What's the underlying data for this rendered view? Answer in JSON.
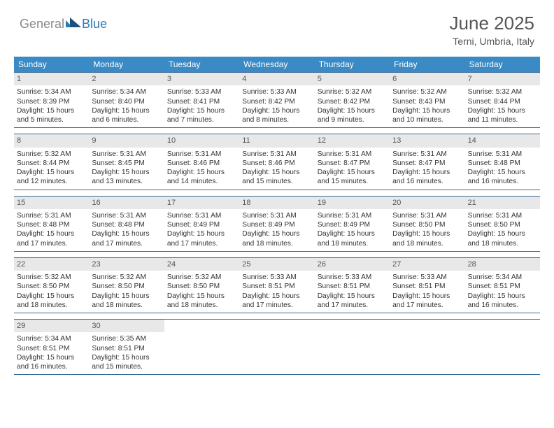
{
  "logo": {
    "text_general": "General",
    "text_blue": "Blue"
  },
  "title": {
    "month": "June 2025",
    "location": "Terni, Umbria, Italy"
  },
  "colors": {
    "header_bg": "#3a8ac5",
    "header_text": "#ffffff",
    "daynum_bg": "#e8e8e8",
    "week_border": "#3a6a98",
    "body_text": "#333333",
    "logo_gray": "#888888",
    "logo_blue": "#2a7ab8"
  },
  "weekdays": [
    "Sunday",
    "Monday",
    "Tuesday",
    "Wednesday",
    "Thursday",
    "Friday",
    "Saturday"
  ],
  "weeks": [
    [
      {
        "num": "1",
        "sunrise": "Sunrise: 5:34 AM",
        "sunset": "Sunset: 8:39 PM",
        "daylight": "Daylight: 15 hours and 5 minutes."
      },
      {
        "num": "2",
        "sunrise": "Sunrise: 5:34 AM",
        "sunset": "Sunset: 8:40 PM",
        "daylight": "Daylight: 15 hours and 6 minutes."
      },
      {
        "num": "3",
        "sunrise": "Sunrise: 5:33 AM",
        "sunset": "Sunset: 8:41 PM",
        "daylight": "Daylight: 15 hours and 7 minutes."
      },
      {
        "num": "4",
        "sunrise": "Sunrise: 5:33 AM",
        "sunset": "Sunset: 8:42 PM",
        "daylight": "Daylight: 15 hours and 8 minutes."
      },
      {
        "num": "5",
        "sunrise": "Sunrise: 5:32 AM",
        "sunset": "Sunset: 8:42 PM",
        "daylight": "Daylight: 15 hours and 9 minutes."
      },
      {
        "num": "6",
        "sunrise": "Sunrise: 5:32 AM",
        "sunset": "Sunset: 8:43 PM",
        "daylight": "Daylight: 15 hours and 10 minutes."
      },
      {
        "num": "7",
        "sunrise": "Sunrise: 5:32 AM",
        "sunset": "Sunset: 8:44 PM",
        "daylight": "Daylight: 15 hours and 11 minutes."
      }
    ],
    [
      {
        "num": "8",
        "sunrise": "Sunrise: 5:32 AM",
        "sunset": "Sunset: 8:44 PM",
        "daylight": "Daylight: 15 hours and 12 minutes."
      },
      {
        "num": "9",
        "sunrise": "Sunrise: 5:31 AM",
        "sunset": "Sunset: 8:45 PM",
        "daylight": "Daylight: 15 hours and 13 minutes."
      },
      {
        "num": "10",
        "sunrise": "Sunrise: 5:31 AM",
        "sunset": "Sunset: 8:46 PM",
        "daylight": "Daylight: 15 hours and 14 minutes."
      },
      {
        "num": "11",
        "sunrise": "Sunrise: 5:31 AM",
        "sunset": "Sunset: 8:46 PM",
        "daylight": "Daylight: 15 hours and 15 minutes."
      },
      {
        "num": "12",
        "sunrise": "Sunrise: 5:31 AM",
        "sunset": "Sunset: 8:47 PM",
        "daylight": "Daylight: 15 hours and 15 minutes."
      },
      {
        "num": "13",
        "sunrise": "Sunrise: 5:31 AM",
        "sunset": "Sunset: 8:47 PM",
        "daylight": "Daylight: 15 hours and 16 minutes."
      },
      {
        "num": "14",
        "sunrise": "Sunrise: 5:31 AM",
        "sunset": "Sunset: 8:48 PM",
        "daylight": "Daylight: 15 hours and 16 minutes."
      }
    ],
    [
      {
        "num": "15",
        "sunrise": "Sunrise: 5:31 AM",
        "sunset": "Sunset: 8:48 PM",
        "daylight": "Daylight: 15 hours and 17 minutes."
      },
      {
        "num": "16",
        "sunrise": "Sunrise: 5:31 AM",
        "sunset": "Sunset: 8:48 PM",
        "daylight": "Daylight: 15 hours and 17 minutes."
      },
      {
        "num": "17",
        "sunrise": "Sunrise: 5:31 AM",
        "sunset": "Sunset: 8:49 PM",
        "daylight": "Daylight: 15 hours and 17 minutes."
      },
      {
        "num": "18",
        "sunrise": "Sunrise: 5:31 AM",
        "sunset": "Sunset: 8:49 PM",
        "daylight": "Daylight: 15 hours and 18 minutes."
      },
      {
        "num": "19",
        "sunrise": "Sunrise: 5:31 AM",
        "sunset": "Sunset: 8:49 PM",
        "daylight": "Daylight: 15 hours and 18 minutes."
      },
      {
        "num": "20",
        "sunrise": "Sunrise: 5:31 AM",
        "sunset": "Sunset: 8:50 PM",
        "daylight": "Daylight: 15 hours and 18 minutes."
      },
      {
        "num": "21",
        "sunrise": "Sunrise: 5:31 AM",
        "sunset": "Sunset: 8:50 PM",
        "daylight": "Daylight: 15 hours and 18 minutes."
      }
    ],
    [
      {
        "num": "22",
        "sunrise": "Sunrise: 5:32 AM",
        "sunset": "Sunset: 8:50 PM",
        "daylight": "Daylight: 15 hours and 18 minutes."
      },
      {
        "num": "23",
        "sunrise": "Sunrise: 5:32 AM",
        "sunset": "Sunset: 8:50 PM",
        "daylight": "Daylight: 15 hours and 18 minutes."
      },
      {
        "num": "24",
        "sunrise": "Sunrise: 5:32 AM",
        "sunset": "Sunset: 8:50 PM",
        "daylight": "Daylight: 15 hours and 18 minutes."
      },
      {
        "num": "25",
        "sunrise": "Sunrise: 5:33 AM",
        "sunset": "Sunset: 8:51 PM",
        "daylight": "Daylight: 15 hours and 17 minutes."
      },
      {
        "num": "26",
        "sunrise": "Sunrise: 5:33 AM",
        "sunset": "Sunset: 8:51 PM",
        "daylight": "Daylight: 15 hours and 17 minutes."
      },
      {
        "num": "27",
        "sunrise": "Sunrise: 5:33 AM",
        "sunset": "Sunset: 8:51 PM",
        "daylight": "Daylight: 15 hours and 17 minutes."
      },
      {
        "num": "28",
        "sunrise": "Sunrise: 5:34 AM",
        "sunset": "Sunset: 8:51 PM",
        "daylight": "Daylight: 15 hours and 16 minutes."
      }
    ],
    [
      {
        "num": "29",
        "sunrise": "Sunrise: 5:34 AM",
        "sunset": "Sunset: 8:51 PM",
        "daylight": "Daylight: 15 hours and 16 minutes."
      },
      {
        "num": "30",
        "sunrise": "Sunrise: 5:35 AM",
        "sunset": "Sunset: 8:51 PM",
        "daylight": "Daylight: 15 hours and 15 minutes."
      },
      null,
      null,
      null,
      null,
      null
    ]
  ]
}
